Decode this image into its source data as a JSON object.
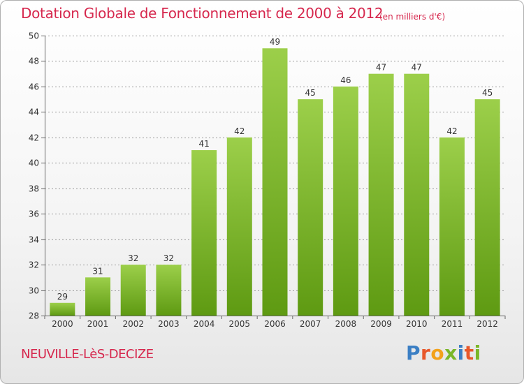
{
  "header": {
    "title": "Dotation Globale de Fonctionnement de 2000 à 2012",
    "unit": "(en milliers d'€)"
  },
  "footer": {
    "commune": "NEUVILLE-LèS-DECIZE",
    "logo_text": "Proxiti"
  },
  "colors": {
    "title": "#d6274d",
    "bar_top": "#9ccf4a",
    "bar_bottom": "#5e9a12",
    "grid": "#999999",
    "logo_letters": [
      "#3b7fc4",
      "#e8572a",
      "#f3a21b",
      "#7ab728",
      "#3b7fc4",
      "#e8572a",
      "#7ab728"
    ]
  },
  "chart_data": {
    "type": "bar",
    "title": "Dotation Globale de Fonctionnement de 2000 à 2012",
    "subtitle": "(en milliers d'€)",
    "xlabel": "",
    "ylabel": "",
    "categories": [
      "2000",
      "2001",
      "2002",
      "2003",
      "2004",
      "2005",
      "2006",
      "2007",
      "2008",
      "2009",
      "2010",
      "2011",
      "2012"
    ],
    "values": [
      29,
      31,
      32,
      32,
      41,
      42,
      49,
      45,
      46,
      47,
      47,
      42,
      45
    ],
    "ylim": [
      28,
      50
    ],
    "yticks": [
      28,
      30,
      32,
      34,
      36,
      38,
      40,
      42,
      44,
      46,
      48,
      50
    ],
    "grid": true,
    "legend": "none"
  }
}
